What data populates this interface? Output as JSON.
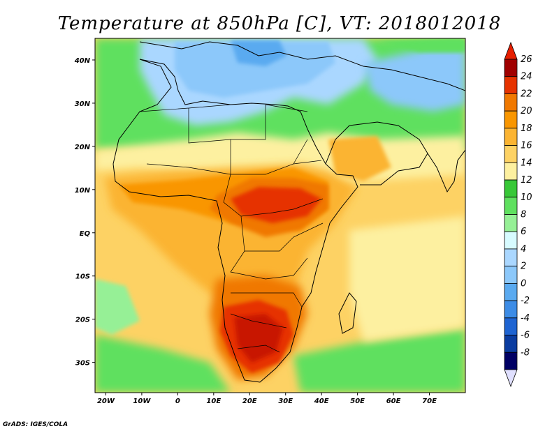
{
  "title": "Temperature at 850hPa [C], VT: 2018012018",
  "credit": "GrADS: IGES/COLA",
  "map": {
    "lon_range": [
      -23,
      80
    ],
    "lat_range": [
      -37,
      45
    ],
    "lon_ticks": [
      {
        "value": -20,
        "label": "20W"
      },
      {
        "value": -10,
        "label": "10W"
      },
      {
        "value": 0,
        "label": "0"
      },
      {
        "value": 10,
        "label": "10E"
      },
      {
        "value": 20,
        "label": "20E"
      },
      {
        "value": 30,
        "label": "30E"
      },
      {
        "value": 40,
        "label": "40E"
      },
      {
        "value": 50,
        "label": "50E"
      },
      {
        "value": 60,
        "label": "60E"
      },
      {
        "value": 70,
        "label": "70E"
      }
    ],
    "lat_ticks": [
      {
        "value": 40,
        "label": "40N"
      },
      {
        "value": 30,
        "label": "30N"
      },
      {
        "value": 20,
        "label": "20N"
      },
      {
        "value": 10,
        "label": "10N"
      },
      {
        "value": 0,
        "label": "EQ"
      },
      {
        "value": -10,
        "label": "10S"
      },
      {
        "value": -20,
        "label": "20S"
      },
      {
        "value": -30,
        "label": "30S"
      }
    ]
  },
  "colorbar": {
    "labels": [
      "26",
      "24",
      "22",
      "20",
      "18",
      "16",
      "14",
      "12",
      "10",
      "8",
      "6",
      "4",
      "2",
      "0",
      "-2",
      "-4",
      "-6",
      "-8"
    ],
    "colors": [
      "#a00000",
      "#e63200",
      "#f07800",
      "#f99600",
      "#fbb432",
      "#fdd264",
      "#fdf0a0",
      "#37c837",
      "#5fe05f",
      "#96f096",
      "#d7fbff",
      "#aad7ff",
      "#8cc8fa",
      "#5aaaf0",
      "#3c8ce6",
      "#1e64d2",
      "#0a3ca0",
      "#000064"
    ],
    "top_arrow_color": "#e61e00",
    "bottom_arrow_color": "#e0e0ff"
  }
}
